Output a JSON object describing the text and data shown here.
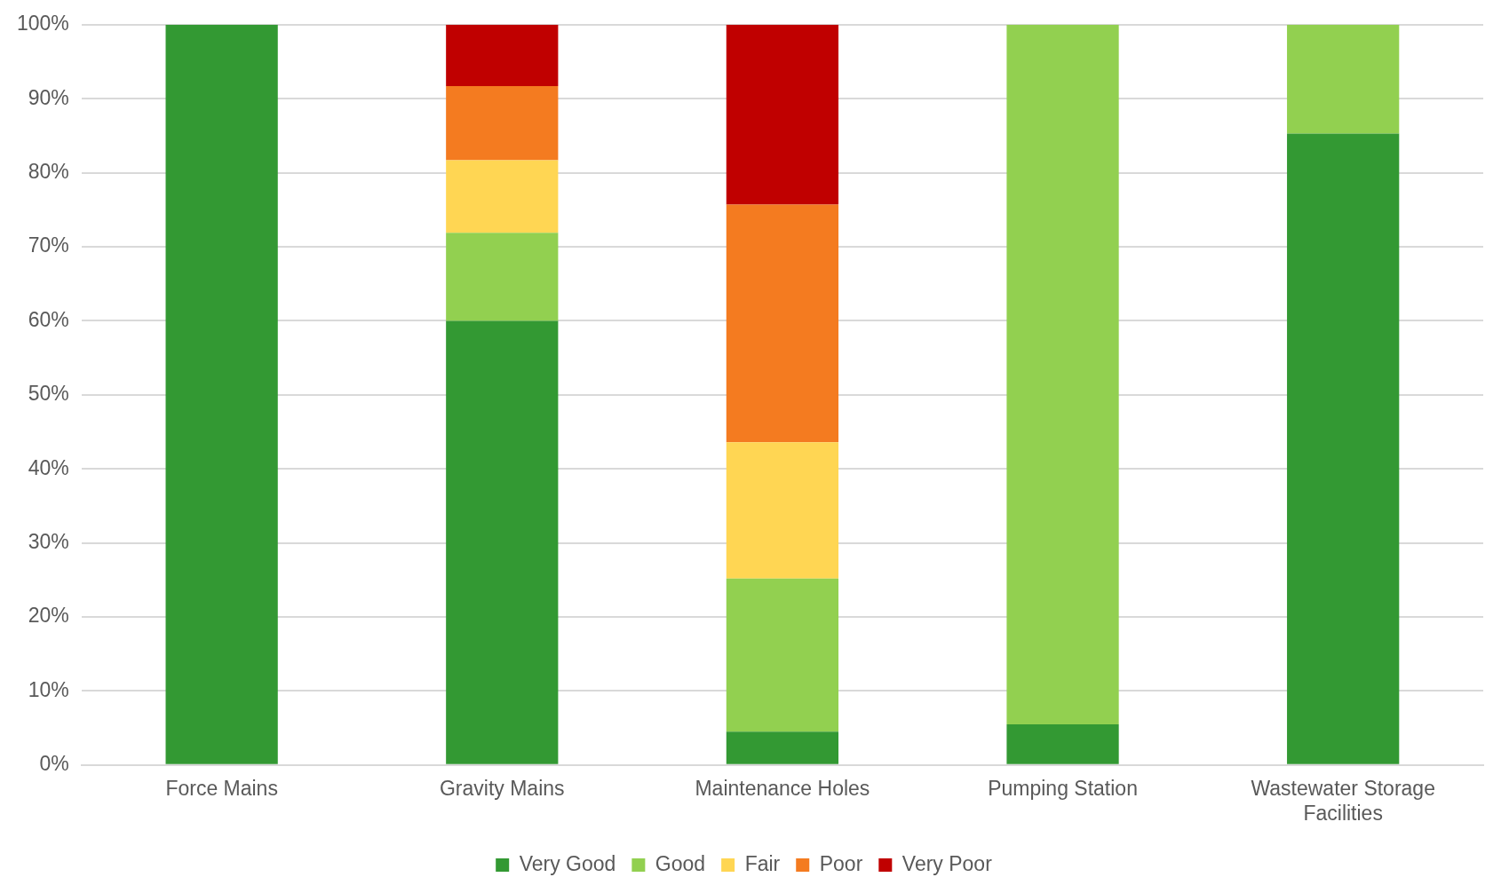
{
  "chart_data": {
    "type": "bar",
    "stacked": true,
    "categories": [
      "Force Mains",
      "Gravity Mains",
      "Maintenance Holes",
      "Pumping Station",
      "Wastewater Storage Facilities"
    ],
    "series": [
      {
        "name": "Very Good",
        "color": "#339933",
        "values": [
          100,
          60,
          4.5,
          5.5,
          85.3
        ]
      },
      {
        "name": "Good",
        "color": "#92d050",
        "values": [
          0,
          11.9,
          20.7,
          94.5,
          14.7
        ]
      },
      {
        "name": "Fair",
        "color": "#ffd653",
        "values": [
          0,
          9.8,
          18.4,
          0,
          0
        ]
      },
      {
        "name": "Poor",
        "color": "#f47b20",
        "values": [
          0,
          10,
          32.1,
          0,
          0
        ]
      },
      {
        "name": "Very Poor",
        "color": "#c00000",
        "values": [
          0,
          8.3,
          24.3,
          0,
          0
        ]
      }
    ],
    "ylim": [
      0,
      100
    ],
    "yticks": [
      {
        "value": 0,
        "label": "0%"
      },
      {
        "value": 10,
        "label": "10%"
      },
      {
        "value": 20,
        "label": "20%"
      },
      {
        "value": 30,
        "label": "30%"
      },
      {
        "value": 40,
        "label": "40%"
      },
      {
        "value": 50,
        "label": "50%"
      },
      {
        "value": 60,
        "label": "60%"
      },
      {
        "value": 70,
        "label": "70%"
      },
      {
        "value": 80,
        "label": "80%"
      },
      {
        "value": 90,
        "label": "90%"
      },
      {
        "value": 100,
        "label": "100%"
      }
    ],
    "grid": "y",
    "legend": "bottom"
  }
}
